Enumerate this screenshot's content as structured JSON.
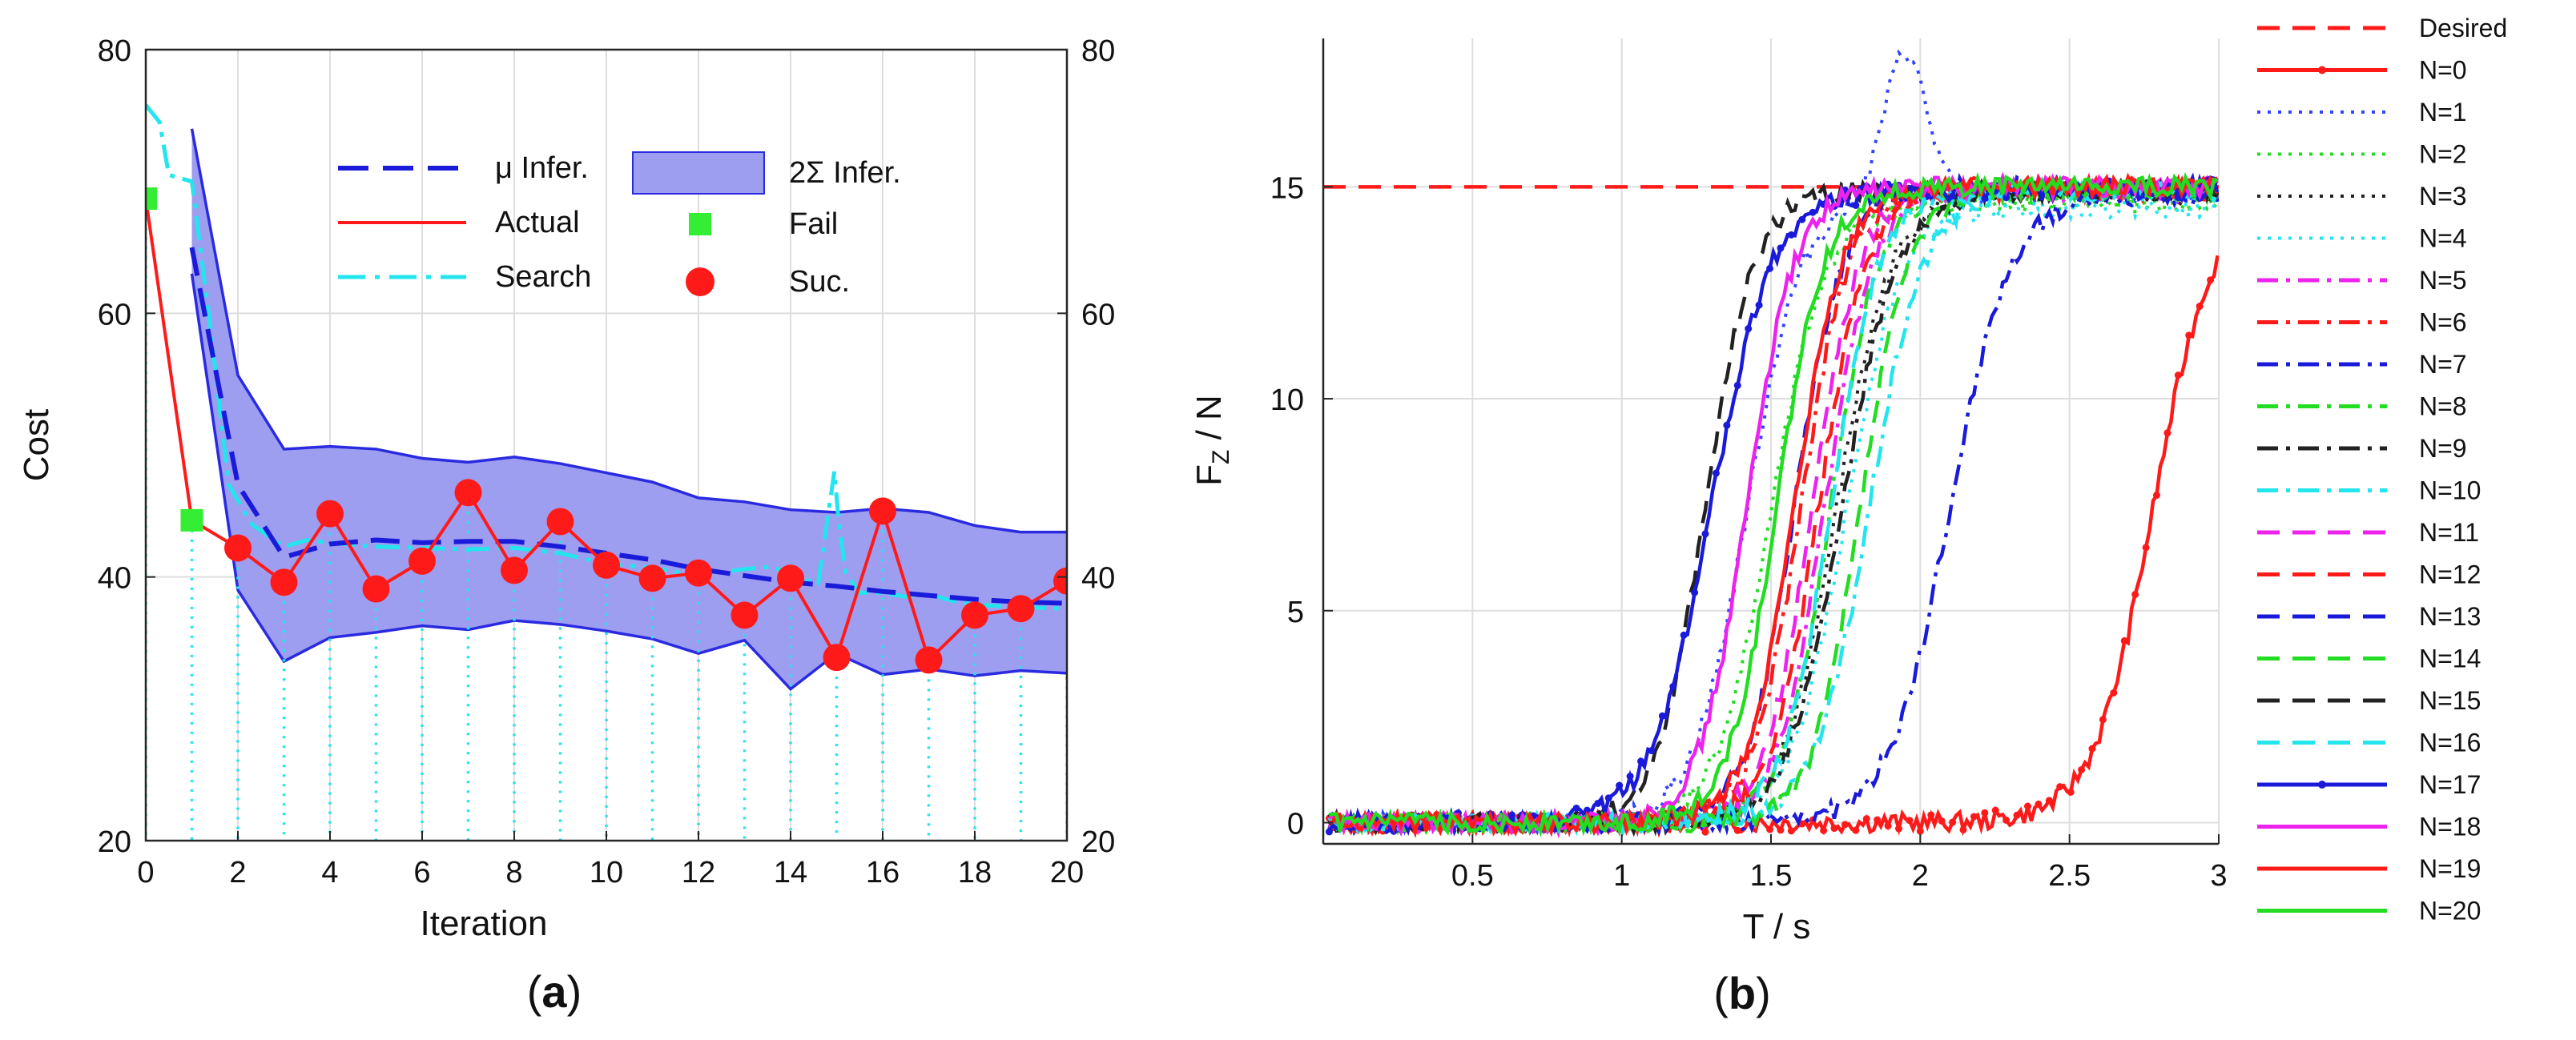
{
  "chart_data": [
    {
      "type": "line",
      "panel_label": "a",
      "xlabel": "Iteration",
      "ylabel": "Cost",
      "xlim": [
        0,
        20
      ],
      "ylim": [
        20,
        80
      ],
      "xticks": [
        0,
        2,
        4,
        6,
        8,
        10,
        12,
        14,
        16,
        18,
        20
      ],
      "yticks": [
        20,
        40,
        60,
        80
      ],
      "right_yticks": [
        20,
        40,
        60,
        80
      ],
      "grid": true,
      "legend_position": "top",
      "legend": {
        "mu": "μ Infer.",
        "actual": "Actual",
        "search": "Search",
        "sigma": "2Σ Infer.",
        "fail": "Fail",
        "suc": "Suc."
      },
      "colors": {
        "mu": "#1a1adb",
        "band": "#9e9ef0",
        "band_edge": "#2a2ae0",
        "actual": "#ff1a1a",
        "search": "#22e5ee",
        "fail": "#33ee33"
      },
      "series": [
        {
          "name": "μ Infer.",
          "x": [
            1,
            2,
            3,
            4,
            5,
            6,
            7,
            8,
            9,
            10,
            11,
            12,
            13,
            14,
            15,
            16,
            17,
            18,
            19,
            20
          ],
          "values": [
            65,
            47,
            41.5,
            42.5,
            42.8,
            42.6,
            42.7,
            42.7,
            42.3,
            41.8,
            41.3,
            40.6,
            40.1,
            39.6,
            39.3,
            38.9,
            38.6,
            38.3,
            38.1,
            38.0
          ]
        },
        {
          "name": "2Σ upper",
          "x": [
            1,
            2,
            3,
            4,
            5,
            6,
            7,
            8,
            9,
            10,
            11,
            12,
            13,
            14,
            15,
            16,
            17,
            18,
            19,
            20
          ],
          "values": [
            74,
            55.3,
            49.7,
            49.9,
            49.7,
            49.0,
            48.7,
            49.1,
            48.6,
            47.9,
            47.2,
            46.0,
            45.7,
            45.1,
            44.9,
            45.2,
            44.9,
            43.9,
            43.4,
            43.4
          ]
        },
        {
          "name": "2Σ lower",
          "x": [
            1,
            2,
            3,
            4,
            5,
            6,
            7,
            8,
            9,
            10,
            11,
            12,
            13,
            14,
            15,
            16,
            17,
            18,
            19,
            20
          ],
          "values": [
            63,
            39,
            33.6,
            35.4,
            35.8,
            36.3,
            36.0,
            36.7,
            36.4,
            35.9,
            35.3,
            34.2,
            35.2,
            31.5,
            34.2,
            32.6,
            33.0,
            32.5,
            32.9,
            32.7
          ]
        },
        {
          "name": "Actual",
          "x": [
            0,
            1,
            2,
            3,
            4,
            5,
            6,
            7,
            8,
            9,
            10,
            11,
            12,
            13,
            14,
            15,
            16,
            17,
            18,
            19,
            20
          ],
          "values": [
            68.7,
            44.3,
            42.2,
            39.6,
            44.8,
            39.1,
            41.2,
            46.4,
            40.5,
            44.2,
            40.9,
            39.9,
            40.3,
            37.1,
            39.9,
            33.9,
            45.0,
            33.7,
            37.1,
            37.6,
            39.7
          ]
        },
        {
          "name": "Search",
          "x": [
            0,
            0.3,
            0.5,
            1,
            1.4,
            1.8,
            2.3,
            2.7,
            3,
            3.5,
            4,
            5,
            6,
            7,
            8,
            9,
            10,
            11,
            12,
            13,
            13.6,
            14,
            14.2,
            14.6,
            14.95,
            15.05,
            15.2,
            15.5,
            16,
            16.5,
            17,
            17.5,
            18,
            19,
            20
          ],
          "values": [
            75.8,
            74.5,
            70.5,
            70,
            59,
            47,
            44,
            43,
            42.3,
            42.8,
            42.6,
            42.3,
            42.2,
            42.1,
            42.2,
            41.8,
            41.0,
            40.7,
            40.1,
            40.6,
            40.8,
            40.2,
            39.9,
            39.5,
            48.0,
            44.0,
            40.3,
            38.8,
            38.8,
            38.5,
            38.7,
            38.2,
            37.9,
            37.7,
            37.6
          ]
        },
        {
          "name": "Fail",
          "x": [
            0,
            1
          ],
          "values": [
            68.7,
            44.3
          ]
        },
        {
          "name": "Suc.",
          "x": [
            2,
            3,
            4,
            5,
            6,
            7,
            8,
            9,
            10,
            11,
            12,
            13,
            14,
            15,
            16,
            17,
            18,
            19,
            20
          ],
          "values": [
            42.2,
            39.6,
            44.8,
            39.1,
            41.2,
            46.4,
            40.5,
            44.2,
            40.9,
            39.9,
            40.3,
            37.1,
            39.9,
            33.9,
            45.0,
            33.7,
            37.1,
            37.6,
            39.7
          ]
        }
      ]
    },
    {
      "type": "line",
      "panel_label": "b",
      "xlabel": "T / s",
      "ylabel": "F",
      "ylabel_sub": "Z",
      "ylabel_suffix": " / N",
      "xlim": [
        0,
        3
      ],
      "ylim": [
        -0.5,
        18.5
      ],
      "xticks": [
        0.5,
        1,
        1.5,
        2,
        2.5,
        3
      ],
      "xtick_labels": [
        "0.5",
        "1",
        "1.5",
        "2",
        "2.5",
        "3"
      ],
      "yticks": [
        0,
        5,
        10,
        15
      ],
      "grid": true,
      "legend_position": "right outside",
      "rise_model": "sigmoid: F = final / (1 + exp(-(t - mid) / width))",
      "series": [
        {
          "name": "Desired",
          "color": "#ff1a1a",
          "style": "dashed",
          "marker": false,
          "constant": 15
        },
        {
          "name": "N=0",
          "color": "#ff1a1a",
          "style": "solid",
          "marker": true,
          "sigmoid": {
            "mid": 2.78,
            "width": 0.1,
            "final": 14.8
          }
        },
        {
          "name": "N=1",
          "color": "#3344ff",
          "style": "dotted",
          "marker": false,
          "sigmoid": {
            "mid": 1.42,
            "width": 0.09,
            "final": 14.8
          },
          "overshoot": {
            "at": 1.95,
            "peak": 18.2,
            "spread": 0.1
          }
        },
        {
          "name": "N=2",
          "color": "#22dd22",
          "style": "dotted",
          "marker": false,
          "sigmoid": {
            "mid": 1.5,
            "width": 0.09,
            "final": 14.6
          }
        },
        {
          "name": "N=3",
          "color": "#222222",
          "style": "dotted",
          "marker": false,
          "sigmoid": {
            "mid": 1.72,
            "width": 0.09,
            "final": 14.8
          }
        },
        {
          "name": "N=4",
          "color": "#22e5ee",
          "style": "dotted",
          "marker": false,
          "sigmoid": {
            "mid": 1.75,
            "width": 0.09,
            "final": 14.5
          }
        },
        {
          "name": "N=5",
          "color": "#ee22ee",
          "style": "dashdot",
          "marker": false,
          "sigmoid": {
            "mid": 1.68,
            "width": 0.08,
            "final": 14.9
          }
        },
        {
          "name": "N=6",
          "color": "#ff1a1a",
          "style": "dashdot",
          "marker": false,
          "sigmoid": {
            "mid": 1.6,
            "width": 0.08,
            "final": 14.9
          }
        },
        {
          "name": "N=7",
          "color": "#1a1adb",
          "style": "dashdot",
          "marker": false,
          "sigmoid": {
            "mid": 2.1,
            "width": 0.1,
            "final": 14.8
          }
        },
        {
          "name": "N=8",
          "color": "#22dd22",
          "style": "dashdot",
          "marker": false,
          "sigmoid": {
            "mid": 1.7,
            "width": 0.08,
            "final": 14.9
          }
        },
        {
          "name": "N=9",
          "color": "#222222",
          "style": "dashdot",
          "marker": false,
          "sigmoid": {
            "mid": 1.74,
            "width": 0.09,
            "final": 14.9
          }
        },
        {
          "name": "N=10",
          "color": "#22e5ee",
          "style": "dashdot",
          "marker": false,
          "sigmoid": {
            "mid": 1.83,
            "width": 0.09,
            "final": 14.9
          }
        },
        {
          "name": "N=11",
          "color": "#ee22ee",
          "style": "dashed",
          "marker": false,
          "sigmoid": {
            "mid": 1.64,
            "width": 0.08,
            "final": 15.0
          }
        },
        {
          "name": "N=12",
          "color": "#ff1a1a",
          "style": "dashed",
          "marker": false,
          "sigmoid": {
            "mid": 1.66,
            "width": 0.08,
            "final": 15.0
          }
        },
        {
          "name": "N=13",
          "color": "#1a1adb",
          "style": "dashed",
          "marker": false,
          "sigmoid": {
            "mid": 1.58,
            "width": 0.08,
            "final": 15.0
          }
        },
        {
          "name": "N=14",
          "color": "#22dd22",
          "style": "dashed",
          "marker": false,
          "sigmoid": {
            "mid": 1.8,
            "width": 0.08,
            "final": 14.9
          }
        },
        {
          "name": "N=15",
          "color": "#222222",
          "style": "dashed",
          "marker": false,
          "sigmoid": {
            "mid": 1.28,
            "width": 0.08,
            "final": 14.9
          }
        },
        {
          "name": "N=16",
          "color": "#22e5ee",
          "style": "dashed",
          "marker": false,
          "sigmoid": {
            "mid": 1.7,
            "width": 0.08,
            "final": 14.9
          }
        },
        {
          "name": "N=17",
          "color": "#1a1adb",
          "style": "solid",
          "marker": true,
          "sigmoid": {
            "mid": 1.3,
            "width": 0.1,
            "final": 14.9
          }
        },
        {
          "name": "N=18",
          "color": "#ee22ee",
          "style": "solid",
          "marker": false,
          "sigmoid": {
            "mid": 1.42,
            "width": 0.08,
            "final": 15.0
          }
        },
        {
          "name": "N=19",
          "color": "#ff1a1a",
          "style": "solid",
          "marker": false,
          "sigmoid": {
            "mid": 1.58,
            "width": 0.08,
            "final": 15.0
          }
        },
        {
          "name": "N=20",
          "color": "#22dd22",
          "style": "solid",
          "marker": false,
          "sigmoid": {
            "mid": 1.52,
            "width": 0.08,
            "final": 15.0
          }
        }
      ]
    }
  ]
}
